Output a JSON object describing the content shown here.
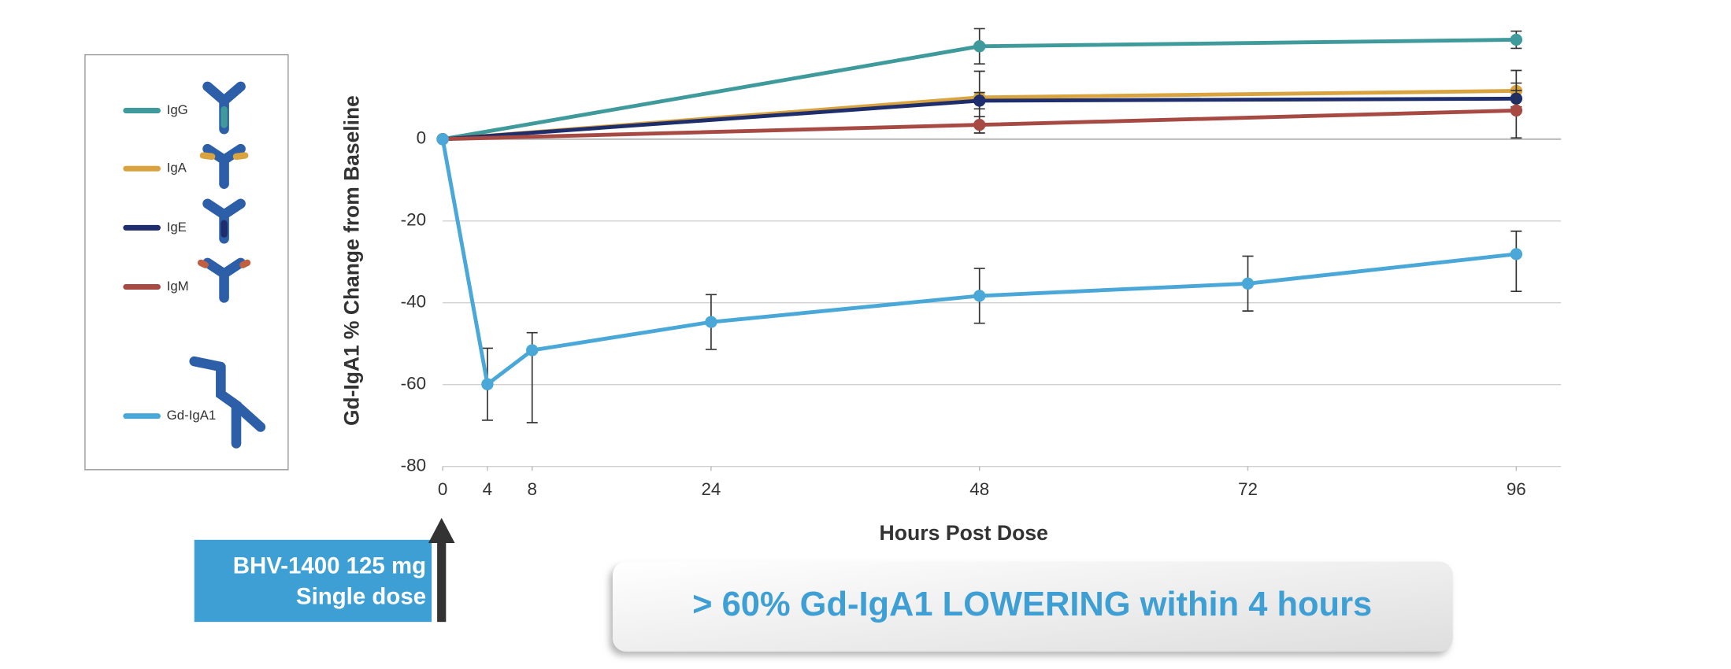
{
  "chart_data": {
    "type": "line",
    "x_label": "Hours Post Dose",
    "y_label": "Gd-IgA1 % Change from Baseline",
    "xlim": [
      0,
      100
    ],
    "xticks": [
      0,
      4,
      8,
      24,
      48,
      72,
      96
    ],
    "ylim": [
      -80,
      30
    ],
    "yticks": [
      -80,
      -60,
      -40,
      -20,
      0
    ],
    "grid": true,
    "series": [
      {
        "name": "IgG",
        "color": "#3f9a9c",
        "x": [
          0,
          48,
          96
        ],
        "values": [
          0,
          22.7,
          24.3
        ],
        "errors": [
          null,
          [
            4.3,
            4.3
          ],
          [
            2.1,
            2.1
          ]
        ]
      },
      {
        "name": "IgA",
        "color": "#d9a440",
        "x": [
          0,
          48,
          96
        ],
        "values": [
          0,
          10.2,
          11.8
        ],
        "errors": [
          null,
          [
            6.4,
            6.4
          ],
          [
            5,
            5
          ]
        ]
      },
      {
        "name": "IgE",
        "color": "#1e2d6b",
        "x": [
          0,
          48,
          96
        ],
        "values": [
          0,
          9.4,
          9.9
        ],
        "errors": [
          null,
          [
            2,
            2
          ],
          [
            2,
            2
          ]
        ]
      },
      {
        "name": "IgM",
        "color": "#a84a44",
        "x": [
          0,
          48,
          96
        ],
        "values": [
          0,
          3.5,
          7.0
        ],
        "errors": [
          null,
          [
            2,
            2
          ],
          [
            6.7,
            6.7
          ]
        ]
      },
      {
        "name": "Gd-IgA1",
        "color": "#4aa8d8",
        "x": [
          0,
          4,
          8,
          24,
          48,
          72,
          96
        ],
        "values": [
          0,
          -59.9,
          -51.6,
          -44.7,
          -38.3,
          -35.3,
          -28.1
        ],
        "errors": [
          null,
          [
            8.8,
            8.8
          ],
          [
            17.7,
            4.3
          ],
          [
            6.7,
            6.7
          ],
          [
            6.7,
            6.7
          ],
          [
            6.7,
            6.7
          ],
          [
            9.1,
            5.6
          ]
        ]
      }
    ],
    "callout": [
      "BHV-1400 125 mg",
      "Single dose"
    ],
    "banner": "> 60% Gd-IgA1 LOWERING within 4 hours"
  }
}
